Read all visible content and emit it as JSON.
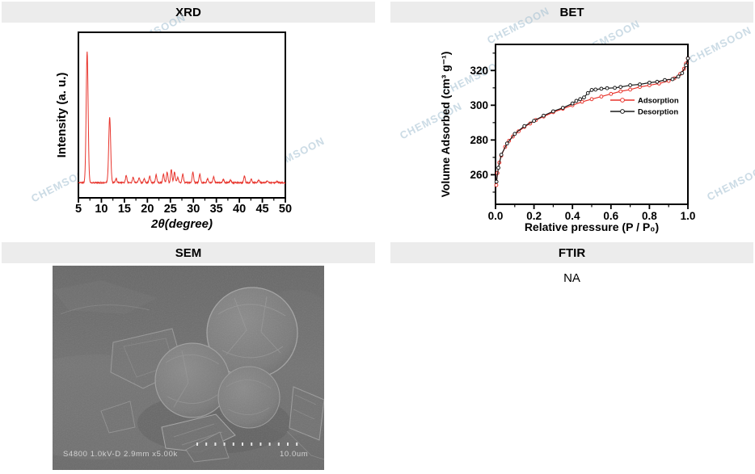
{
  "panels": {
    "xrd": {
      "title": "XRD"
    },
    "bet": {
      "title": "BET"
    },
    "sem": {
      "title": "SEM"
    },
    "ftir": {
      "title": "FTIR",
      "body": "NA"
    }
  },
  "watermark": {
    "text": "CHEMSOON",
    "color": "#a9c4d4"
  },
  "colors": {
    "header_bg": "#ececec",
    "xrd_line": "#e8342c",
    "adsorption": "#e8342c",
    "desorption": "#1a1a1a"
  },
  "sem_image": {
    "caption": "S4800 1.0kV-D 2.9mm x5.00k",
    "scale_label": "10.0um"
  },
  "chart_data": [
    {
      "id": "xrd",
      "type": "line",
      "title": "",
      "xlabel": "2θ(degree)",
      "ylabel": "Intensity (a. u.)",
      "xlim": [
        5,
        50
      ],
      "xticks": [
        5,
        10,
        15,
        20,
        25,
        30,
        35,
        40,
        45,
        50
      ],
      "grid": false,
      "line_color": "#e8342c",
      "peaks": [
        [
          6.9,
          1.0
        ],
        [
          11.8,
          0.5
        ],
        [
          13.2,
          0.03
        ],
        [
          15.4,
          0.055
        ],
        [
          16.9,
          0.04
        ],
        [
          18.2,
          0.04
        ],
        [
          19.3,
          0.03
        ],
        [
          20.5,
          0.05
        ],
        [
          21.9,
          0.06
        ],
        [
          23.5,
          0.065
        ],
        [
          24.3,
          0.08
        ],
        [
          25.2,
          0.1
        ],
        [
          25.9,
          0.08
        ],
        [
          26.6,
          0.04
        ],
        [
          27.7,
          0.065
        ],
        [
          29.9,
          0.08
        ],
        [
          31.4,
          0.065
        ],
        [
          33.1,
          0.03
        ],
        [
          34.4,
          0.045
        ],
        [
          36.5,
          0.025
        ],
        [
          38.1,
          0.02
        ],
        [
          41.1,
          0.05
        ],
        [
          42.6,
          0.025
        ],
        [
          44.2,
          0.02
        ],
        [
          46.1,
          0.015
        ],
        [
          48.2,
          0.012
        ]
      ]
    },
    {
      "id": "bet",
      "type": "line-scatter",
      "title": "",
      "xlabel": "Relative pressure (P / P₀)",
      "ylabel": "Volume Adsorbed (cm³ g⁻¹)",
      "xlim": [
        0.0,
        1.0
      ],
      "ylim": [
        243,
        335
      ],
      "xticks": [
        0.0,
        0.2,
        0.4,
        0.6,
        0.8,
        1.0
      ],
      "yticks": [
        260,
        280,
        300,
        320
      ],
      "grid": false,
      "legend_position": "middle-right",
      "series": [
        {
          "name": "Adsorption",
          "color": "#e8342c",
          "points": [
            [
              0.004,
              254
            ],
            [
              0.01,
              261
            ],
            [
              0.02,
              267
            ],
            [
              0.03,
              271
            ],
            [
              0.05,
              276
            ],
            [
              0.07,
              279.5
            ],
            [
              0.09,
              282
            ],
            [
              0.12,
              285
            ],
            [
              0.15,
              287.5
            ],
            [
              0.18,
              289.5
            ],
            [
              0.21,
              291.5
            ],
            [
              0.25,
              293.5
            ],
            [
              0.3,
              296
            ],
            [
              0.35,
              298
            ],
            [
              0.4,
              300
            ],
            [
              0.45,
              302
            ],
            [
              0.5,
              303.5
            ],
            [
              0.55,
              305
            ],
            [
              0.6,
              306.5
            ],
            [
              0.65,
              308
            ],
            [
              0.7,
              309
            ],
            [
              0.75,
              310.5
            ],
            [
              0.8,
              311.5
            ],
            [
              0.85,
              312.5
            ],
            [
              0.9,
              314
            ],
            [
              0.93,
              315.5
            ],
            [
              0.96,
              318
            ],
            [
              0.98,
              321
            ],
            [
              0.99,
              324
            ],
            [
              1.0,
              327
            ]
          ]
        },
        {
          "name": "Desorption",
          "color": "#1a1a1a",
          "points": [
            [
              1.0,
              327
            ],
            [
              0.99,
              323
            ],
            [
              0.97,
              318.5
            ],
            [
              0.95,
              316.5
            ],
            [
              0.92,
              315
            ],
            [
              0.88,
              314.5
            ],
            [
              0.84,
              313.5
            ],
            [
              0.8,
              313
            ],
            [
              0.75,
              312
            ],
            [
              0.7,
              311.5
            ],
            [
              0.65,
              310.5
            ],
            [
              0.62,
              310
            ],
            [
              0.58,
              309.8
            ],
            [
              0.55,
              309.5
            ],
            [
              0.52,
              309
            ],
            [
              0.5,
              308.8
            ],
            [
              0.48,
              307
            ],
            [
              0.46,
              304.5
            ],
            [
              0.44,
              303.5
            ],
            [
              0.42,
              302.5
            ],
            [
              0.4,
              301
            ],
            [
              0.35,
              298.5
            ],
            [
              0.3,
              296.5
            ],
            [
              0.25,
              294
            ],
            [
              0.2,
              291
            ],
            [
              0.15,
              288
            ],
            [
              0.1,
              283.5
            ],
            [
              0.06,
              278
            ],
            [
              0.03,
              271.5
            ],
            [
              0.015,
              264
            ],
            [
              0.005,
              256
            ]
          ]
        }
      ]
    }
  ]
}
